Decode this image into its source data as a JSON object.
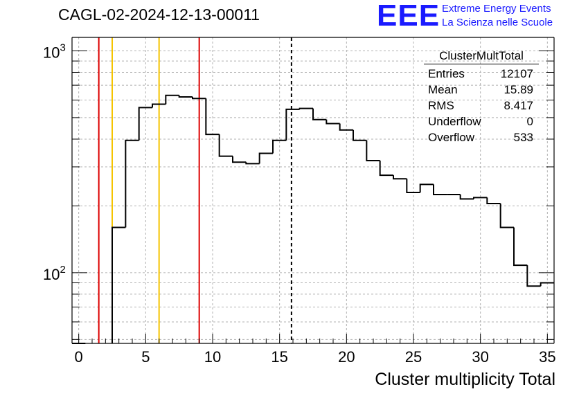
{
  "chart_data": {
    "type": "histogram",
    "title": "CAGL-02-2024-12-13-00011",
    "xlabel": "Cluster multiplicity Total",
    "ylabel": "",
    "xlim": [
      -0.5,
      35.5
    ],
    "ylim": [
      48,
      1150
    ],
    "log_y": true,
    "grid": true,
    "x_ticks": [
      0,
      5,
      10,
      15,
      20,
      25,
      30,
      35
    ],
    "y_tick_labels": [
      {
        "value": 100,
        "base": "10",
        "exp": "2"
      },
      {
        "value": 1000,
        "base": "10",
        "exp": "3"
      }
    ],
    "bin_width": 1,
    "bin_start": -0.5,
    "values": [
      0,
      0,
      0,
      160,
      395,
      555,
      575,
      630,
      620,
      610,
      420,
      335,
      315,
      310,
      345,
      395,
      545,
      550,
      490,
      470,
      440,
      395,
      320,
      275,
      265,
      230,
      250,
      225,
      225,
      215,
      218,
      205,
      160,
      108,
      87,
      90
    ],
    "vertical_lines": [
      {
        "x": 1.5,
        "color": "#dd0000",
        "style": "solid"
      },
      {
        "x": 2.5,
        "color": "#f5c400",
        "style": "solid"
      },
      {
        "x": 6.0,
        "color": "#f5c400",
        "style": "solid"
      },
      {
        "x": 9.0,
        "color": "#dd0000",
        "style": "solid"
      },
      {
        "x": 15.89,
        "color": "#000000",
        "style": "dashed"
      }
    ],
    "stats": {
      "name": "ClusterMultTotal",
      "rows": [
        {
          "label": "Entries",
          "value": "12107"
        },
        {
          "label": "Mean",
          "value": "15.89"
        },
        {
          "label": "RMS",
          "value": "8.417"
        },
        {
          "label": "Underflow",
          "value": "0"
        },
        {
          "label": "Overflow",
          "value": "533"
        }
      ]
    }
  },
  "logo": {
    "mark": "EEE",
    "line1": "Extreme Energy Events",
    "line2": "La Scienza nelle Scuole",
    "color": "#1a1aff"
  }
}
